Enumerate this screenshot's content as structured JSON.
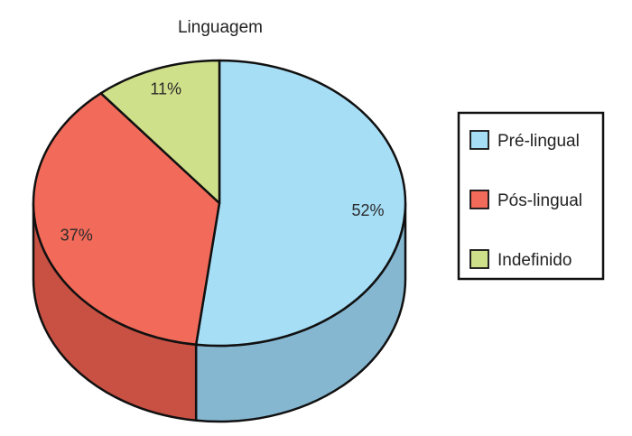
{
  "chart_data": {
    "type": "pie",
    "title": "Linguagem",
    "categories": [
      "Pré-lingual",
      "Pós-lingual",
      "Indefinido"
    ],
    "values": [
      52,
      37,
      11
    ],
    "labels": [
      "52%",
      "37%",
      "11%"
    ],
    "colors": {
      "top": [
        "#a6def6",
        "#f26a59",
        "#cfe08a"
      ],
      "side": [
        "#86b7d1",
        "#c85143",
        "#a9b86f"
      ]
    },
    "legend_position": "right",
    "style": "3d"
  }
}
